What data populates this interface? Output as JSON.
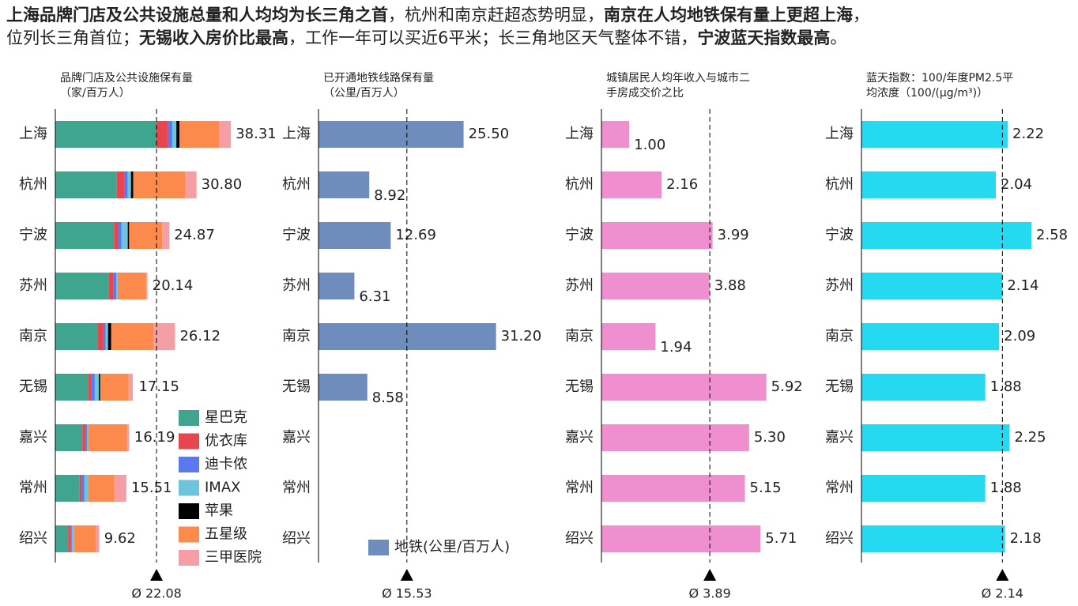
{
  "title_lines": [
    [
      {
        "text": "上海品牌门店及公共设施总量和人均均为长三角之首",
        "bold": true
      },
      {
        "text": "，杭州和南京赶超态势明显，",
        "bold": false
      },
      {
        "text": "南京在人均地铁保有量上更超上海",
        "bold": true
      },
      {
        "text": "，",
        "bold": false
      }
    ],
    [
      {
        "text": "位列长三角首位；",
        "bold": false
      },
      {
        "text": "无锡收入房价比最高",
        "bold": true
      },
      {
        "text": "，工作一年可以买近6平米；长三角地区天气整体不错，",
        "bold": false
      },
      {
        "text": "宁波蓝天指数最高",
        "bold": true
      },
      {
        "text": "。",
        "bold": false
      }
    ]
  ],
  "chart_data": [
    {
      "type": "stacked_bar",
      "title_lines": [
        "品牌门店及公共设施保有量",
        "（家/百万人）"
      ],
      "categories": [
        "上海",
        "杭州",
        "宁波",
        "苏州",
        "南京",
        "无锡",
        "嘉兴",
        "常州",
        "绍兴"
      ],
      "series": [
        {
          "name": "星巴克",
          "color": "#3fa58e",
          "values": [
            22.0,
            13.4,
            12.8,
            11.6,
            9.3,
            7.2,
            5.9,
            5.3,
            2.8
          ]
        },
        {
          "name": "优衣库",
          "color": "#e8464f",
          "values": [
            2.6,
            1.7,
            0.9,
            1.0,
            1.2,
            0.7,
            0.7,
            0.5,
            0.5
          ]
        },
        {
          "name": "迪卡侬",
          "color": "#5a79ef",
          "values": [
            0.9,
            0.7,
            0.7,
            0.7,
            0.5,
            0.7,
            0.3,
            0.5,
            0.3
          ]
        },
        {
          "name": "IMAX",
          "color": "#6ec4dc",
          "values": [
            0.9,
            0.7,
            1.4,
            0.3,
            0.5,
            0.9,
            0.3,
            0.9,
            0.5
          ]
        },
        {
          "name": "苹果",
          "color": "#000000",
          "values": [
            0.7,
            0.5,
            0.3,
            0,
            0.7,
            0.3,
            0,
            0,
            0
          ]
        },
        {
          "name": "五星级",
          "color": "#fb8a4c",
          "values": [
            8.6,
            11.4,
            7.2,
            6.2,
            9.3,
            6.2,
            8.4,
            5.7,
            4.8
          ]
        },
        {
          "name": "三甲医院",
          "color": "#f59ea3",
          "values": [
            2.6,
            2.4,
            1.6,
            0.3,
            4.6,
            0.9,
            0.5,
            2.6,
            0.7
          ]
        }
      ],
      "totals": [
        38.31,
        30.8,
        24.87,
        20.14,
        26.12,
        17.15,
        16.19,
        15.51,
        9.62
      ],
      "total_labels": [
        "38.31",
        "30.80",
        "24.87",
        "20.14",
        "26.12",
        "17.15",
        "16.19",
        "15.51",
        "9.62"
      ],
      "xlim": [
        0,
        45
      ],
      "average": 22.08,
      "average_label": "Ø 22.08"
    },
    {
      "type": "bar",
      "title_lines": [
        "已开通地铁线路保有量",
        "（公里/百万人）"
      ],
      "categories": [
        "上海",
        "杭州",
        "宁波",
        "苏州",
        "南京",
        "无锡",
        "嘉兴",
        "常州",
        "绍兴"
      ],
      "series": [
        {
          "name": "地铁(公里/百万人)",
          "color": "#6e8cbc",
          "values": [
            25.5,
            8.92,
            12.69,
            6.31,
            31.2,
            8.58,
            null,
            null,
            null
          ],
          "value_labels": [
            "25.50",
            "8.92",
            "12.69",
            "6.31",
            "31.20",
            "8.58",
            null,
            null,
            null
          ]
        }
      ],
      "xlim": [
        0,
        40
      ],
      "average": 15.53,
      "average_label": "Ø 15.53"
    },
    {
      "type": "bar",
      "title_lines": [
        "城镇居民人均年收入与城市二",
        "手房成交价之比"
      ],
      "categories": [
        "上海",
        "杭州",
        "宁波",
        "苏州",
        "南京",
        "无锡",
        "嘉兴",
        "常州",
        "绍兴"
      ],
      "series": [
        {
          "color": "#f08fd0",
          "values": [
            1.0,
            2.16,
            3.99,
            3.88,
            1.94,
            5.92,
            5.3,
            5.15,
            5.71
          ],
          "value_labels": [
            "1.00",
            "2.16",
            "3.99",
            "3.88",
            "1.94",
            "5.92",
            "5.30",
            "5.15",
            "5.71"
          ]
        }
      ],
      "xlim": [
        0,
        8
      ],
      "average": 3.89,
      "average_label": "Ø 3.89"
    },
    {
      "type": "bar",
      "title_lines": [
        "蓝天指数：100/年度PM2.5平",
        "均浓度（100/(μg/m³)）"
      ],
      "categories": [
        "上海",
        "杭州",
        "宁波",
        "苏州",
        "南京",
        "无锡",
        "嘉兴",
        "常州",
        "绍兴"
      ],
      "series": [
        {
          "color": "#25daf0",
          "values": [
            2.22,
            2.04,
            2.58,
            2.14,
            2.09,
            1.88,
            2.25,
            1.88,
            2.18
          ],
          "value_labels": [
            "2.22",
            "2.04",
            "2.58",
            "2.14",
            "2.09",
            "1.88",
            "2.25",
            "1.88",
            "2.18"
          ]
        }
      ],
      "xlim": [
        0,
        3
      ],
      "average": 2.14,
      "average_label": "Ø 2.14"
    }
  ]
}
